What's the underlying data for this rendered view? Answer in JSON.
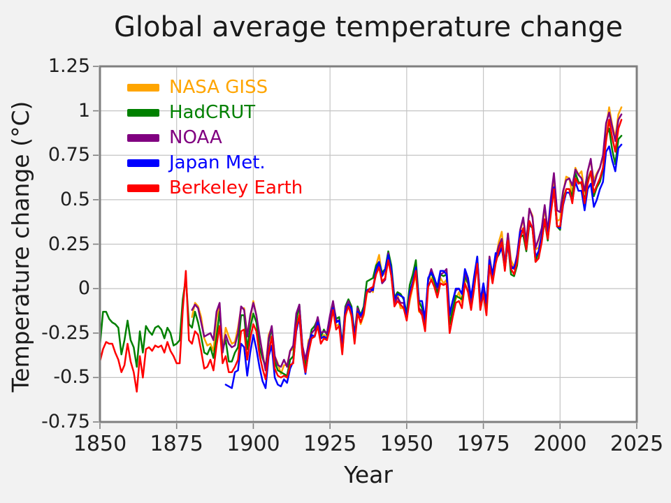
{
  "figure": {
    "background": "#f2f2f2",
    "plot_background": "#ffffff",
    "border_color": "#7f7f7f",
    "grid_color": "#c4c4c4",
    "tick_color": "#7f7f7f"
  },
  "chart_data": {
    "type": "line",
    "title": "Global average temperature change",
    "xlabel": "Year",
    "ylabel": "Temperature change (°C)",
    "xlim": [
      1850,
      2025
    ],
    "ylim": [
      -0.75,
      1.25
    ],
    "grid": true,
    "legend_position": "upper left",
    "xticks": [
      1850,
      1875,
      1900,
      1925,
      1950,
      1975,
      2000,
      2025
    ],
    "yticks": [
      -0.75,
      -0.5,
      -0.25,
      0,
      0.25,
      0.5,
      0.75,
      1,
      1.25
    ],
    "ytick_labels": [
      "-0.75",
      "-0.5",
      "-0.25",
      "0",
      "0.25",
      "0.5",
      "0.75",
      "1",
      "1.25"
    ],
    "series": [
      {
        "name": "NASA GISS",
        "color": "#FFA500",
        "start_year": 1880,
        "values": [
          -0.16,
          -0.08,
          -0.1,
          -0.16,
          -0.28,
          -0.32,
          -0.31,
          -0.35,
          -0.17,
          -0.1,
          -0.35,
          -0.22,
          -0.27,
          -0.31,
          -0.3,
          -0.22,
          -0.11,
          -0.11,
          -0.26,
          -0.17,
          -0.07,
          -0.15,
          -0.27,
          -0.36,
          -0.46,
          -0.26,
          -0.22,
          -0.38,
          -0.42,
          -0.48,
          -0.43,
          -0.43,
          -0.35,
          -0.34,
          -0.15,
          -0.13,
          -0.35,
          -0.45,
          -0.29,
          -0.27,
          -0.27,
          -0.18,
          -0.28,
          -0.26,
          -0.27,
          -0.22,
          -0.1,
          -0.21,
          -0.2,
          -0.36,
          -0.16,
          -0.09,
          -0.16,
          -0.29,
          -0.12,
          -0.2,
          -0.15,
          -0.03,
          0.0,
          -0.02,
          0.13,
          0.19,
          0.07,
          0.09,
          0.2,
          0.09,
          -0.07,
          -0.03,
          -0.11,
          -0.11,
          -0.17,
          -0.07,
          0.01,
          0.08,
          -0.13,
          -0.14,
          -0.19,
          0.05,
          0.06,
          0.03,
          -0.03,
          0.06,
          0.03,
          0.05,
          -0.2,
          -0.11,
          -0.06,
          -0.02,
          -0.08,
          0.05,
          0.03,
          -0.08,
          0.01,
          0.16,
          -0.07,
          -0.01,
          -0.1,
          0.18,
          0.07,
          0.16,
          0.26,
          0.32,
          0.14,
          0.31,
          0.16,
          0.12,
          0.18,
          0.32,
          0.39,
          0.27,
          0.45,
          0.41,
          0.22,
          0.23,
          0.31,
          0.45,
          0.33,
          0.46,
          0.61,
          0.38,
          0.39,
          0.54,
          0.63,
          0.62,
          0.53,
          0.68,
          0.64,
          0.66,
          0.54,
          0.66,
          0.72,
          0.61,
          0.65,
          0.68,
          0.74,
          0.9,
          1.02,
          0.92,
          0.85,
          0.98,
          1.02
        ]
      },
      {
        "name": "HadCRUT",
        "color": "#008000",
        "start_year": 1850,
        "values": [
          -0.32,
          -0.13,
          -0.13,
          -0.17,
          -0.19,
          -0.2,
          -0.22,
          -0.37,
          -0.29,
          -0.18,
          -0.29,
          -0.33,
          -0.44,
          -0.24,
          -0.36,
          -0.21,
          -0.24,
          -0.26,
          -0.22,
          -0.21,
          -0.23,
          -0.28,
          -0.22,
          -0.25,
          -0.32,
          -0.31,
          -0.29,
          -0.06,
          0.06,
          -0.2,
          -0.22,
          -0.13,
          -0.19,
          -0.27,
          -0.36,
          -0.37,
          -0.33,
          -0.39,
          -0.27,
          -0.13,
          -0.34,
          -0.29,
          -0.41,
          -0.41,
          -0.36,
          -0.33,
          -0.15,
          -0.15,
          -0.34,
          -0.22,
          -0.14,
          -0.19,
          -0.33,
          -0.39,
          -0.44,
          -0.3,
          -0.22,
          -0.41,
          -0.46,
          -0.47,
          -0.48,
          -0.49,
          -0.4,
          -0.38,
          -0.18,
          -0.09,
          -0.32,
          -0.44,
          -0.33,
          -0.23,
          -0.21,
          -0.17,
          -0.27,
          -0.23,
          -0.26,
          -0.18,
          -0.08,
          -0.17,
          -0.16,
          -0.32,
          -0.1,
          -0.06,
          -0.1,
          -0.26,
          -0.1,
          -0.15,
          -0.1,
          0.04,
          0.05,
          0.06,
          0.13,
          0.15,
          0.09,
          0.11,
          0.21,
          0.13,
          -0.05,
          -0.02,
          -0.03,
          -0.06,
          -0.14,
          0.02,
          0.08,
          0.16,
          -0.07,
          -0.11,
          -0.2,
          0.05,
          0.09,
          0.04,
          -0.02,
          0.08,
          0.07,
          0.08,
          -0.2,
          -0.12,
          -0.04,
          -0.05,
          -0.06,
          0.07,
          0.03,
          -0.09,
          0.04,
          0.18,
          -0.11,
          -0.02,
          -0.13,
          0.15,
          0.05,
          0.16,
          0.19,
          0.23,
          0.11,
          0.26,
          0.08,
          0.07,
          0.13,
          0.29,
          0.3,
          0.21,
          0.36,
          0.34,
          0.15,
          0.21,
          0.27,
          0.38,
          0.27,
          0.46,
          0.56,
          0.35,
          0.33,
          0.5,
          0.56,
          0.56,
          0.52,
          0.65,
          0.6,
          0.59,
          0.49,
          0.61,
          0.66,
          0.52,
          0.57,
          0.6,
          0.67,
          0.86,
          0.9,
          0.78,
          0.7,
          0.84,
          0.86
        ]
      },
      {
        "name": "NOAA",
        "color": "#800080",
        "start_year": 1880,
        "values": [
          -0.12,
          -0.09,
          -0.11,
          -0.19,
          -0.27,
          -0.26,
          -0.25,
          -0.29,
          -0.13,
          -0.08,
          -0.36,
          -0.26,
          -0.31,
          -0.33,
          -0.32,
          -0.25,
          -0.1,
          -0.12,
          -0.27,
          -0.15,
          -0.08,
          -0.15,
          -0.26,
          -0.37,
          -0.46,
          -0.28,
          -0.21,
          -0.38,
          -0.43,
          -0.44,
          -0.4,
          -0.44,
          -0.35,
          -0.32,
          -0.14,
          -0.09,
          -0.32,
          -0.4,
          -0.31,
          -0.25,
          -0.23,
          -0.16,
          -0.25,
          -0.24,
          -0.25,
          -0.15,
          -0.07,
          -0.18,
          -0.18,
          -0.33,
          -0.11,
          -0.07,
          -0.12,
          -0.27,
          -0.11,
          -0.16,
          -0.12,
          -0.01,
          -0.02,
          0.0,
          0.08,
          0.13,
          0.03,
          0.05,
          0.2,
          0.07,
          -0.08,
          -0.05,
          -0.08,
          -0.08,
          -0.17,
          -0.02,
          0.03,
          0.11,
          -0.11,
          -0.13,
          -0.19,
          0.05,
          0.11,
          0.06,
          0.0,
          0.08,
          0.09,
          0.11,
          -0.14,
          -0.07,
          -0.01,
          0.0,
          -0.03,
          0.09,
          0.04,
          -0.08,
          0.02,
          0.16,
          -0.07,
          0.0,
          -0.08,
          0.18,
          0.07,
          0.17,
          0.24,
          0.28,
          0.14,
          0.31,
          0.13,
          0.11,
          0.19,
          0.33,
          0.4,
          0.26,
          0.45,
          0.4,
          0.23,
          0.28,
          0.34,
          0.47,
          0.32,
          0.51,
          0.65,
          0.44,
          0.43,
          0.55,
          0.61,
          0.62,
          0.58,
          0.67,
          0.64,
          0.62,
          0.55,
          0.66,
          0.73,
          0.58,
          0.64,
          0.68,
          0.75,
          0.93,
          0.99,
          0.91,
          0.83,
          0.95,
          0.98
        ]
      },
      {
        "name": "Japan Met.",
        "color": "#0000FF",
        "start_year": 1891,
        "values": [
          -0.54,
          -0.55,
          -0.56,
          -0.47,
          -0.46,
          -0.31,
          -0.33,
          -0.49,
          -0.36,
          -0.26,
          -0.34,
          -0.44,
          -0.52,
          -0.56,
          -0.38,
          -0.32,
          -0.5,
          -0.54,
          -0.55,
          -0.51,
          -0.53,
          -0.45,
          -0.41,
          -0.24,
          -0.16,
          -0.37,
          -0.48,
          -0.35,
          -0.26,
          -0.27,
          -0.19,
          -0.28,
          -0.27,
          -0.28,
          -0.21,
          -0.11,
          -0.19,
          -0.18,
          -0.33,
          -0.13,
          -0.09,
          -0.11,
          -0.28,
          -0.13,
          -0.15,
          -0.12,
          -0.01,
          0.0,
          -0.01,
          0.11,
          0.15,
          0.07,
          0.11,
          0.19,
          0.11,
          -0.06,
          -0.03,
          -0.04,
          -0.05,
          -0.17,
          -0.02,
          0.04,
          0.12,
          -0.07,
          -0.07,
          -0.17,
          0.06,
          0.09,
          0.06,
          0.01,
          0.1,
          0.1,
          0.08,
          -0.15,
          -0.07,
          0.0,
          0.0,
          -0.03,
          0.11,
          0.06,
          -0.05,
          0.07,
          0.18,
          -0.07,
          0.03,
          -0.08,
          0.16,
          0.08,
          0.2,
          0.19,
          0.23,
          0.12,
          0.25,
          0.11,
          0.12,
          0.17,
          0.32,
          0.33,
          0.23,
          0.37,
          0.34,
          0.18,
          0.21,
          0.3,
          0.39,
          0.29,
          0.47,
          0.57,
          0.35,
          0.34,
          0.47,
          0.54,
          0.54,
          0.49,
          0.6,
          0.55,
          0.55,
          0.44,
          0.56,
          0.59,
          0.46,
          0.5,
          0.56,
          0.6,
          0.77,
          0.8,
          0.72,
          0.66,
          0.79,
          0.81
        ]
      },
      {
        "name": "Berkeley Earth",
        "color": "#FF0000",
        "start_year": 1850,
        "values": [
          -0.41,
          -0.34,
          -0.3,
          -0.31,
          -0.31,
          -0.36,
          -0.4,
          -0.47,
          -0.43,
          -0.31,
          -0.41,
          -0.47,
          -0.58,
          -0.38,
          -0.5,
          -0.34,
          -0.33,
          -0.35,
          -0.32,
          -0.33,
          -0.32,
          -0.36,
          -0.3,
          -0.35,
          -0.38,
          -0.42,
          -0.42,
          -0.12,
          0.1,
          -0.29,
          -0.31,
          -0.24,
          -0.26,
          -0.35,
          -0.45,
          -0.44,
          -0.4,
          -0.46,
          -0.32,
          -0.21,
          -0.42,
          -0.38,
          -0.47,
          -0.47,
          -0.44,
          -0.4,
          -0.24,
          -0.23,
          -0.4,
          -0.28,
          -0.2,
          -0.24,
          -0.37,
          -0.45,
          -0.51,
          -0.36,
          -0.27,
          -0.45,
          -0.49,
          -0.5,
          -0.49,
          -0.5,
          -0.43,
          -0.42,
          -0.22,
          -0.15,
          -0.36,
          -0.47,
          -0.36,
          -0.28,
          -0.27,
          -0.21,
          -0.31,
          -0.28,
          -0.29,
          -0.22,
          -0.12,
          -0.23,
          -0.21,
          -0.37,
          -0.15,
          -0.1,
          -0.15,
          -0.31,
          -0.14,
          -0.19,
          -0.14,
          -0.02,
          0.0,
          0.01,
          0.08,
          0.12,
          0.04,
          0.06,
          0.16,
          0.07,
          -0.1,
          -0.07,
          -0.09,
          -0.11,
          -0.18,
          -0.05,
          0.02,
          0.1,
          -0.12,
          -0.15,
          -0.24,
          0.01,
          0.05,
          0.01,
          -0.05,
          0.03,
          0.02,
          0.03,
          -0.25,
          -0.16,
          -0.08,
          -0.07,
          -0.11,
          0.03,
          -0.02,
          -0.12,
          0.0,
          0.14,
          -0.12,
          -0.03,
          -0.15,
          0.13,
          0.03,
          0.14,
          0.21,
          0.26,
          0.1,
          0.27,
          0.11,
          0.08,
          0.15,
          0.28,
          0.34,
          0.22,
          0.38,
          0.34,
          0.15,
          0.17,
          0.26,
          0.39,
          0.28,
          0.42,
          0.56,
          0.35,
          0.35,
          0.48,
          0.56,
          0.56,
          0.48,
          0.62,
          0.59,
          0.6,
          0.48,
          0.59,
          0.66,
          0.54,
          0.58,
          0.62,
          0.68,
          0.83,
          0.95,
          0.85,
          0.77,
          0.9,
          0.95
        ]
      }
    ]
  }
}
